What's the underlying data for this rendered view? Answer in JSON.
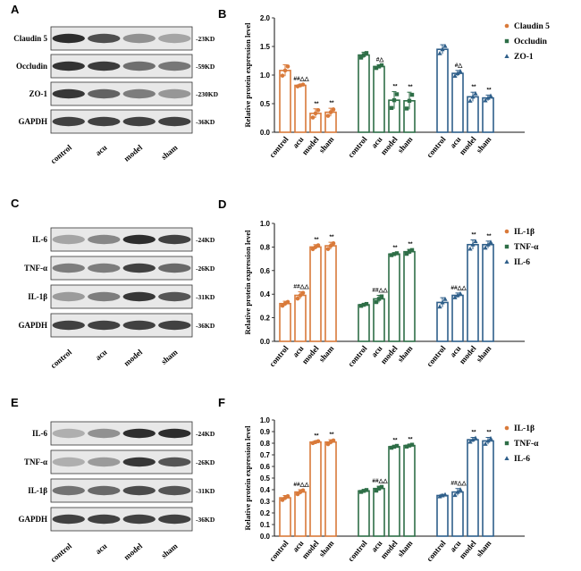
{
  "figure": {
    "blots": [
      {
        "panel": "A",
        "rows": [
          {
            "label": "Claudin 5",
            "kd": "-23KD",
            "intensity": [
              0.95,
              0.78,
              0.45,
              0.35
            ]
          },
          {
            "label": "Occludin",
            "kd": "-59KD",
            "intensity": [
              0.92,
              0.88,
              0.62,
              0.58
            ]
          },
          {
            "label": "ZO-1",
            "kd": "-230KD",
            "intensity": [
              0.9,
              0.68,
              0.55,
              0.42
            ]
          },
          {
            "label": "GAPDH",
            "kd": "-36KD",
            "intensity": [
              0.85,
              0.85,
              0.85,
              0.85
            ]
          }
        ],
        "lanes": [
          "control",
          "acu",
          "model",
          "sham"
        ]
      },
      {
        "panel": "C",
        "rows": [
          {
            "label": "IL-6",
            "kd": "-24KD",
            "intensity": [
              0.35,
              0.5,
              0.95,
              0.85
            ]
          },
          {
            "label": "TNF-α",
            "kd": "-26KD",
            "intensity": [
              0.55,
              0.55,
              0.85,
              0.65
            ]
          },
          {
            "label": "IL-1β",
            "kd": "-31KD",
            "intensity": [
              0.4,
              0.55,
              0.9,
              0.75
            ]
          },
          {
            "label": "GAPDH",
            "kd": "-36KD",
            "intensity": [
              0.85,
              0.85,
              0.85,
              0.85
            ]
          }
        ],
        "lanes": [
          "control",
          "acu",
          "model",
          "sham"
        ]
      },
      {
        "panel": "E",
        "rows": [
          {
            "label": "IL-6",
            "kd": "-24KD",
            "intensity": [
              0.3,
              0.45,
              0.95,
              0.95
            ]
          },
          {
            "label": "TNF-α",
            "kd": "-26KD",
            "intensity": [
              0.3,
              0.4,
              0.9,
              0.75
            ]
          },
          {
            "label": "IL-1β",
            "kd": "-31KD",
            "intensity": [
              0.6,
              0.65,
              0.8,
              0.75
            ]
          },
          {
            "label": "GAPDH",
            "kd": "-36KD",
            "intensity": [
              0.85,
              0.85,
              0.85,
              0.85
            ]
          }
        ],
        "lanes": [
          "control",
          "acu",
          "model",
          "sham"
        ]
      }
    ]
  },
  "chart_data": [
    {
      "panel": "B",
      "type": "bar",
      "ylabel": "Relative protein expression level",
      "ylim": [
        0,
        2.0
      ],
      "yticks": [
        "0.0",
        "0.5",
        "1.0",
        "1.5",
        "2.0"
      ],
      "categories": [
        "control",
        "acu",
        "model",
        "sham"
      ],
      "series": [
        {
          "name": "Claudin 5",
          "color": "#d97a3a",
          "marker": "circle",
          "values": [
            1.08,
            0.82,
            0.33,
            0.35
          ],
          "errors": [
            0.1,
            0.02,
            0.08,
            0.07
          ],
          "sig": [
            "",
            "##△△",
            "**",
            "**"
          ]
        },
        {
          "name": "Occludin",
          "color": "#2e6e47",
          "marker": "square",
          "values": [
            1.35,
            1.15,
            0.56,
            0.55
          ],
          "errors": [
            0.05,
            0.03,
            0.15,
            0.15
          ],
          "sig": [
            "",
            "#△",
            "**",
            "**"
          ]
        },
        {
          "name": "ZO-1",
          "color": "#2f5f8a",
          "marker": "triangle",
          "values": [
            1.45,
            1.03,
            0.62,
            0.6
          ],
          "errors": [
            0.08,
            0.05,
            0.08,
            0.05
          ],
          "sig": [
            "",
            "#△",
            "**",
            "**"
          ]
        }
      ]
    },
    {
      "panel": "D",
      "type": "bar",
      "ylabel": "Relative protein expression level",
      "ylim": [
        0,
        1.0
      ],
      "yticks": [
        "0.0",
        "0.2",
        "0.4",
        "0.6",
        "0.8",
        "1.0"
      ],
      "categories": [
        "control",
        "acu",
        "model",
        "sham"
      ],
      "series": [
        {
          "name": "IL-1β",
          "color": "#d97a3a",
          "marker": "circle",
          "values": [
            0.32,
            0.39,
            0.8,
            0.81
          ],
          "errors": [
            0.02,
            0.03,
            0.02,
            0.03
          ],
          "sig": [
            "",
            "##△△",
            "**",
            "**"
          ]
        },
        {
          "name": "TNF-α",
          "color": "#2e6e47",
          "marker": "square",
          "values": [
            0.31,
            0.36,
            0.74,
            0.76
          ],
          "errors": [
            0.01,
            0.03,
            0.01,
            0.02
          ],
          "sig": [
            "",
            "##△△",
            "**",
            "**"
          ]
        },
        {
          "name": "IL-6",
          "color": "#2f5f8a",
          "marker": "triangle",
          "values": [
            0.33,
            0.39,
            0.82,
            0.82
          ],
          "errors": [
            0.04,
            0.02,
            0.04,
            0.03
          ],
          "sig": [
            "",
            "##△△",
            "**",
            "**"
          ]
        }
      ]
    },
    {
      "panel": "F",
      "type": "bar",
      "ylabel": "Relative protein expression level",
      "ylim": [
        0,
        1.0
      ],
      "yticks": [
        "0.0",
        "0.1",
        "0.2",
        "0.3",
        "0.4",
        "0.5",
        "0.6",
        "0.7",
        "0.8",
        "0.9",
        "1.0"
      ],
      "categories": [
        "control",
        "acu",
        "model",
        "sham"
      ],
      "series": [
        {
          "name": "IL-1β",
          "color": "#d97a3a",
          "marker": "circle",
          "values": [
            0.33,
            0.38,
            0.81,
            0.81
          ],
          "errors": [
            0.02,
            0.02,
            0.01,
            0.02
          ],
          "sig": [
            "",
            "##△△",
            "**",
            "**"
          ]
        },
        {
          "name": "TNF-α",
          "color": "#2e6e47",
          "marker": "square",
          "values": [
            0.39,
            0.41,
            0.77,
            0.78
          ],
          "errors": [
            0.01,
            0.02,
            0.01,
            0.01
          ],
          "sig": [
            "",
            "##△△",
            "**",
            "**"
          ]
        },
        {
          "name": "IL-6",
          "color": "#2f5f8a",
          "marker": "triangle",
          "values": [
            0.35,
            0.38,
            0.83,
            0.82
          ],
          "errors": [
            0.01,
            0.03,
            0.02,
            0.03
          ],
          "sig": [
            "",
            "##△△",
            "**",
            "**"
          ]
        }
      ]
    }
  ]
}
